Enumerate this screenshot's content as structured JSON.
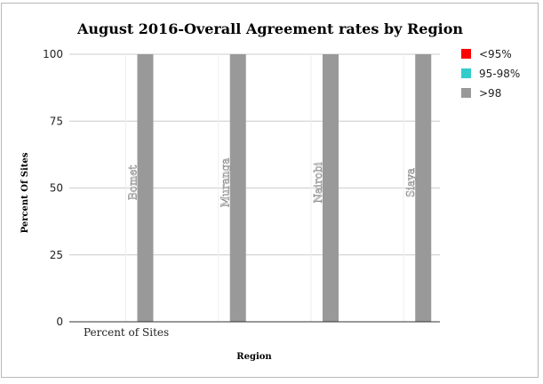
{
  "chart_data": {
    "type": "bar",
    "title": "August 2016-Overall Agreement rates by Region",
    "xlabel": "Region",
    "ylabel": "Percent Of Sites",
    "series_label": "Percent of Sites",
    "categories": [
      "Bomet",
      "Muranga",
      "Nairobi",
      "Siaya"
    ],
    "series": [
      {
        "name": "<95%",
        "color": "#ff0000",
        "values": [
          0,
          0,
          0,
          0
        ]
      },
      {
        "name": "95-98%",
        "color": "#33cccc",
        "values": [
          0,
          0,
          0,
          0
        ]
      },
      {
        "name": ">98",
        "color": "#999999",
        "values": [
          100,
          100,
          100,
          100
        ]
      }
    ],
    "yticks": [
      "0",
      "25",
      "50",
      "75",
      "100"
    ],
    "ylim": [
      0,
      100
    ],
    "grid": true,
    "legend_position": "top-right"
  }
}
